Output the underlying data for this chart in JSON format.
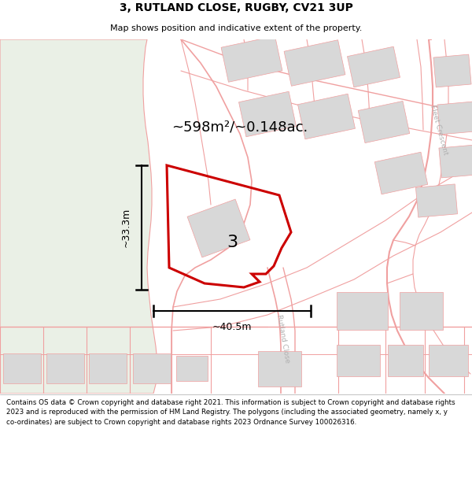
{
  "title": "3, RUTLAND CLOSE, RUGBY, CV21 3UP",
  "subtitle": "Map shows position and indicative extent of the property.",
  "area_text": "~598m²/~0.148ac.",
  "dim_width": "~40.5m",
  "dim_height": "~33.3m",
  "plot_number": "3",
  "footer": "Contains OS data © Crown copyright and database right 2021. This information is subject to Crown copyright and database rights 2023 and is reproduced with the permission of HM Land Registry. The polygons (including the associated geometry, namely x, y co-ordinates) are subject to Crown copyright and database rights 2023 Ordnance Survey 100026316.",
  "map_bg": "#ffffff",
  "green_color": "#eaf0e6",
  "pink_line": "#f0a0a0",
  "red_plot": "#cc0000",
  "gray_building": "#d8d8d8",
  "road_label_color": "#b0b0b0",
  "white_bg": "#ffffff",
  "title_fontsize": 10,
  "subtitle_fontsize": 8,
  "footer_fontsize": 6.3
}
